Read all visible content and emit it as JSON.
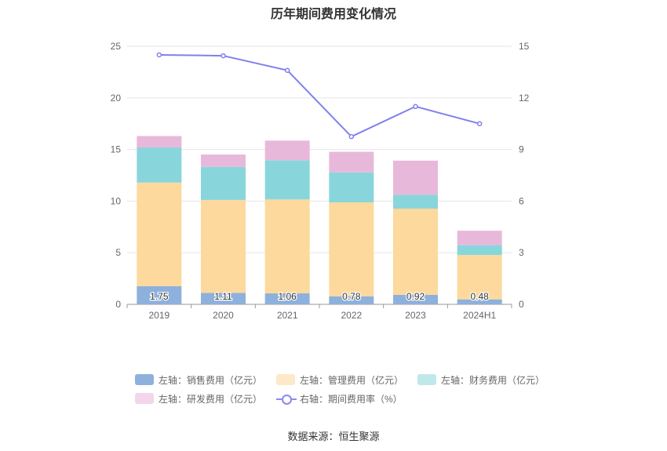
{
  "chart_data": {
    "type": "bar",
    "title": "历年期间费用变化情况",
    "categories": [
      "2019",
      "2020",
      "2021",
      "2022",
      "2023",
      "2024H1"
    ],
    "left_axis": {
      "min": 0,
      "max": 25,
      "ticks": [
        0,
        5,
        10,
        15,
        20,
        25
      ]
    },
    "right_axis": {
      "min": 0,
      "max": 15,
      "ticks": [
        0,
        3,
        6,
        9,
        12,
        15
      ]
    },
    "series": [
      {
        "name": "左轴：销售费用（亿元）",
        "axis": "left",
        "stack": true,
        "color": "#8eb0dc",
        "values": [
          1.75,
          1.11,
          1.06,
          0.78,
          0.92,
          0.48
        ],
        "labels": [
          "1.75",
          "1.11",
          "1.06",
          "0.78",
          "0.92",
          "0.48"
        ]
      },
      {
        "name": "左轴：管理费用（亿元）",
        "axis": "left",
        "stack": true,
        "color": "#fdd99d",
        "values": [
          10.05,
          9.0,
          9.1,
          9.1,
          8.35,
          4.3
        ]
      },
      {
        "name": "左轴：财务费用（亿元）",
        "axis": "left",
        "stack": true,
        "color": "#88d6dc",
        "values": [
          3.4,
          3.2,
          3.8,
          2.9,
          1.35,
          0.95
        ]
      },
      {
        "name": "左轴：研发费用（亿元）",
        "axis": "left",
        "stack": true,
        "color": "#e8b8da",
        "values": [
          1.1,
          1.2,
          1.9,
          2.0,
          3.3,
          1.4
        ]
      },
      {
        "name": "右轴：期间费用率（%）",
        "axis": "right",
        "type": "line",
        "color": "#8080ee",
        "values": [
          14.5,
          14.45,
          13.6,
          9.75,
          11.5,
          10.5
        ]
      }
    ],
    "legend": {
      "row1": [
        "左轴：销售费用（亿元）",
        "左轴：管理费用（亿元）",
        "左轴：财务费用（亿元）"
      ],
      "row2": [
        "左轴：研发费用（亿元）",
        "右轴：期间费用率（%）"
      ],
      "legend_colors": [
        "#8eb0dc",
        "#fde8c8",
        "#bfe8ea",
        "#f3d6ea",
        "#8a8af0"
      ]
    },
    "source": "数据来源：恒生聚源"
  }
}
